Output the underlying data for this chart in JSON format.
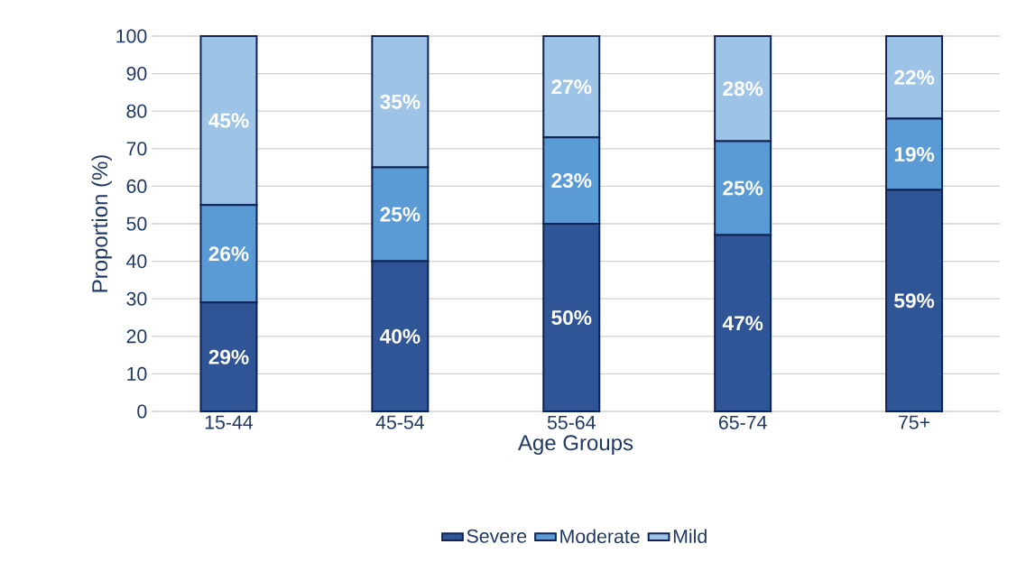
{
  "chart_data": {
    "type": "bar",
    "stacked": true,
    "xlabel": "Age Groups",
    "ylabel": "Proportion (%)",
    "categories": [
      "15-44",
      "45-54",
      "55-64",
      "65-74",
      "75+"
    ],
    "series": [
      {
        "name": "Severe",
        "color": "#2f5597",
        "values": [
          29,
          40,
          50,
          47,
          59
        ],
        "value_labels": [
          "29%",
          "40%",
          "50%",
          "47%",
          "59%"
        ]
      },
      {
        "name": "Moderate",
        "color": "#5b9bd5",
        "values": [
          26,
          25,
          23,
          25,
          19
        ],
        "value_labels": [
          "26%",
          "25%",
          "23%",
          "25%",
          "19%"
        ]
      },
      {
        "name": "Mild",
        "color": "#9dc3e6",
        "values": [
          45,
          35,
          27,
          28,
          22
        ],
        "value_labels": [
          "45%",
          "35%",
          "27%",
          "28%",
          "22%"
        ]
      }
    ],
    "ylim": [
      0,
      100
    ],
    "yticks": [
      0,
      10,
      20,
      30,
      40,
      50,
      60,
      70,
      80,
      90,
      100
    ],
    "grid": "y",
    "legend": "bottom"
  }
}
